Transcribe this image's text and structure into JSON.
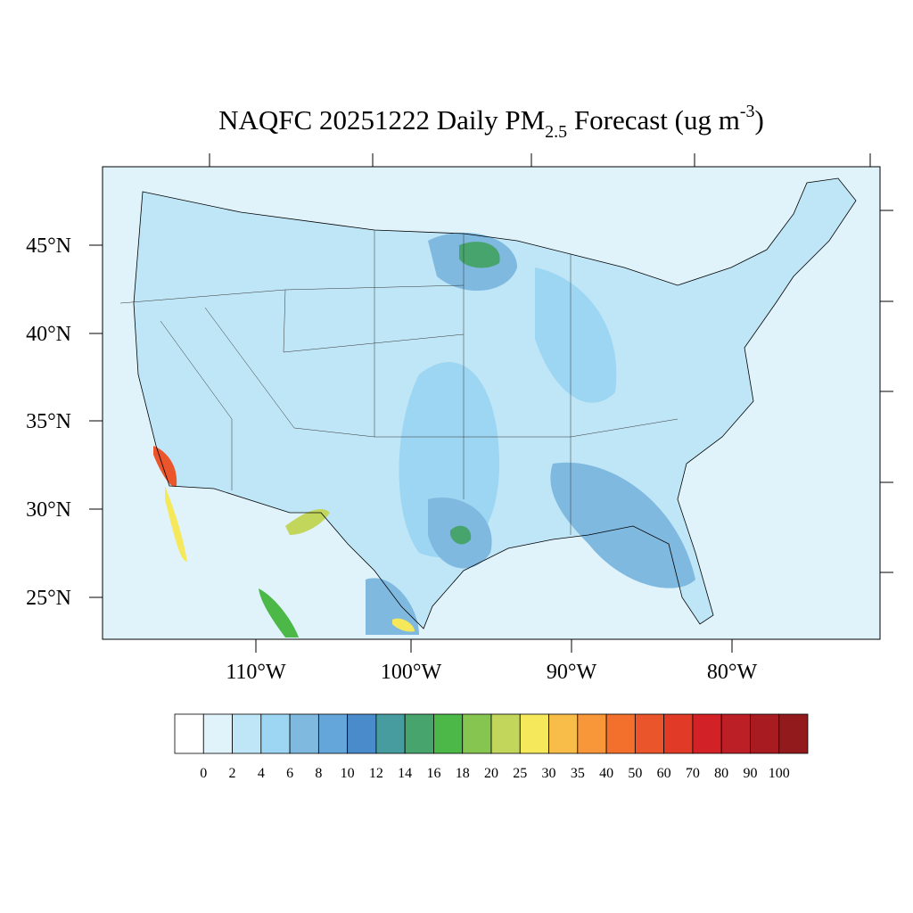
{
  "title": {
    "main": "NAQFC 20251222 Daily PM",
    "subscript": "2.5",
    "middle": " Forecast (ug m",
    "superscript": "-3",
    "end": ")"
  },
  "map": {
    "lat_labels": [
      "45°N",
      "40°N",
      "35°N",
      "30°N",
      "25°N"
    ],
    "lon_labels": [
      "110°W",
      "100°W",
      "90°W",
      "80°W"
    ]
  },
  "colorbar": {
    "levels": [
      0,
      2,
      4,
      6,
      8,
      10,
      12,
      14,
      16,
      18,
      20,
      25,
      30,
      35,
      40,
      50,
      60,
      70,
      80,
      90,
      100
    ],
    "colors": [
      "#ffffff",
      "#e0f3fb",
      "#bfe6f7",
      "#9dd6f2",
      "#7fb9e0",
      "#65a6da",
      "#4a8ccb",
      "#479c9f",
      "#47a46d",
      "#4cb848",
      "#86c550",
      "#c3d65c",
      "#f5e85a",
      "#f8bd48",
      "#f79739",
      "#f2702c",
      "#ea552b",
      "#e13a27",
      "#d32128",
      "#bd1f26",
      "#a81c21",
      "#921a1d"
    ]
  }
}
